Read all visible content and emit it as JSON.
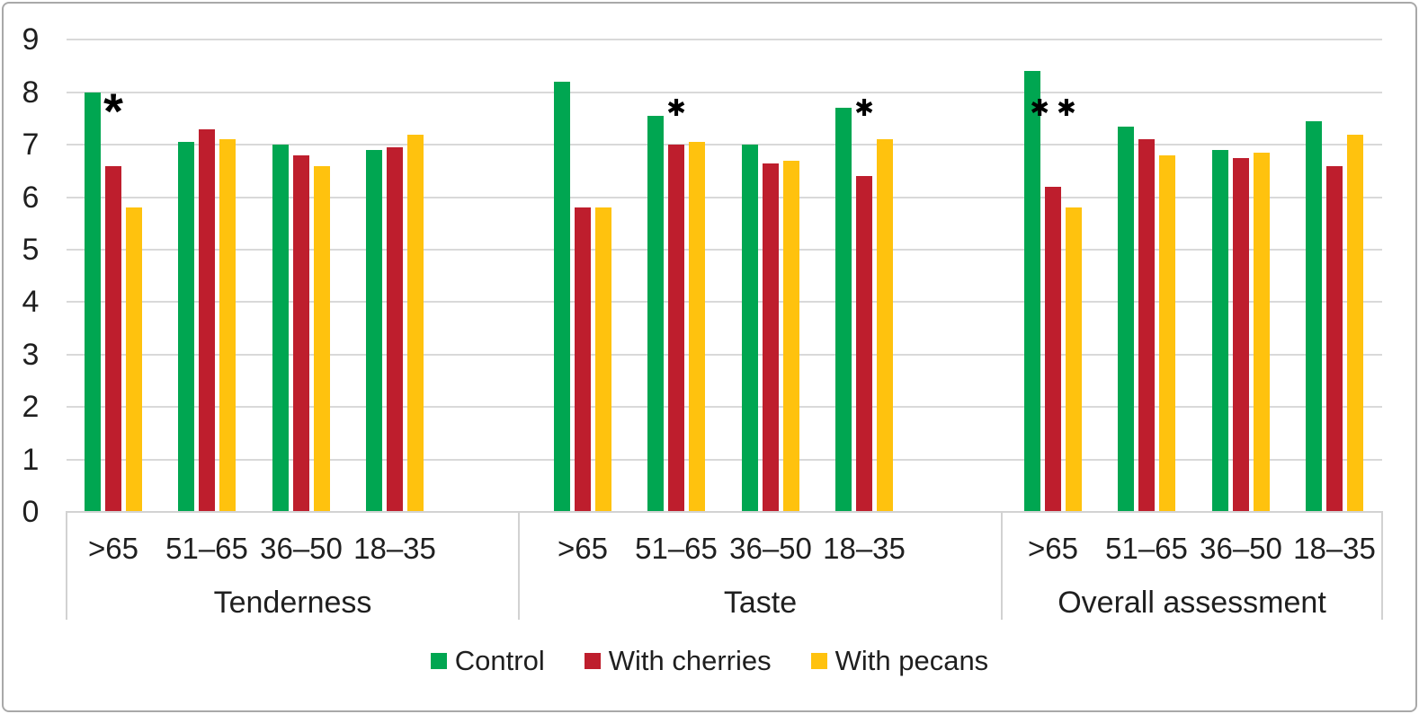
{
  "chart_data": {
    "type": "bar",
    "title": "",
    "xlabel": "",
    "ylabel": "",
    "ylim": [
      0,
      9
    ],
    "yticks": [
      0,
      1,
      2,
      3,
      4,
      5,
      6,
      7,
      8,
      9
    ],
    "grid": true,
    "legend_position": "bottom",
    "panels": [
      "Tenderness",
      "Taste",
      "Overall assessment"
    ],
    "categories": [
      ">65",
      "51–65",
      "36–50",
      "18–35"
    ],
    "series": [
      {
        "name": "Control",
        "color": "#00A651",
        "values": [
          [
            8.0,
            7.05,
            7.0,
            6.9
          ],
          [
            8.2,
            7.55,
            7.0,
            7.7
          ],
          [
            8.4,
            7.35,
            6.9,
            7.45
          ]
        ]
      },
      {
        "name": "With cherries",
        "color": "#BE1E2D",
        "values": [
          [
            6.6,
            7.3,
            6.8,
            6.95
          ],
          [
            5.8,
            7.0,
            6.65,
            6.4
          ],
          [
            6.2,
            7.1,
            6.75,
            6.6
          ]
        ]
      },
      {
        "name": "With pecans",
        "color": "#FFC20E",
        "values": [
          [
            5.8,
            7.1,
            6.6,
            7.2
          ],
          [
            5.8,
            7.05,
            6.7,
            7.1
          ],
          [
            5.8,
            6.8,
            6.85,
            7.2
          ]
        ]
      }
    ],
    "annotations": [
      {
        "panel": "Tenderness",
        "category": ">65",
        "text": "*"
      },
      {
        "panel": "Taste",
        "category": "51–65",
        "text": "✱"
      },
      {
        "panel": "Taste",
        "category": "18–35",
        "text": "✱"
      },
      {
        "panel": "Overall assessment",
        "category": ">65",
        "text": "✱✱"
      }
    ]
  }
}
